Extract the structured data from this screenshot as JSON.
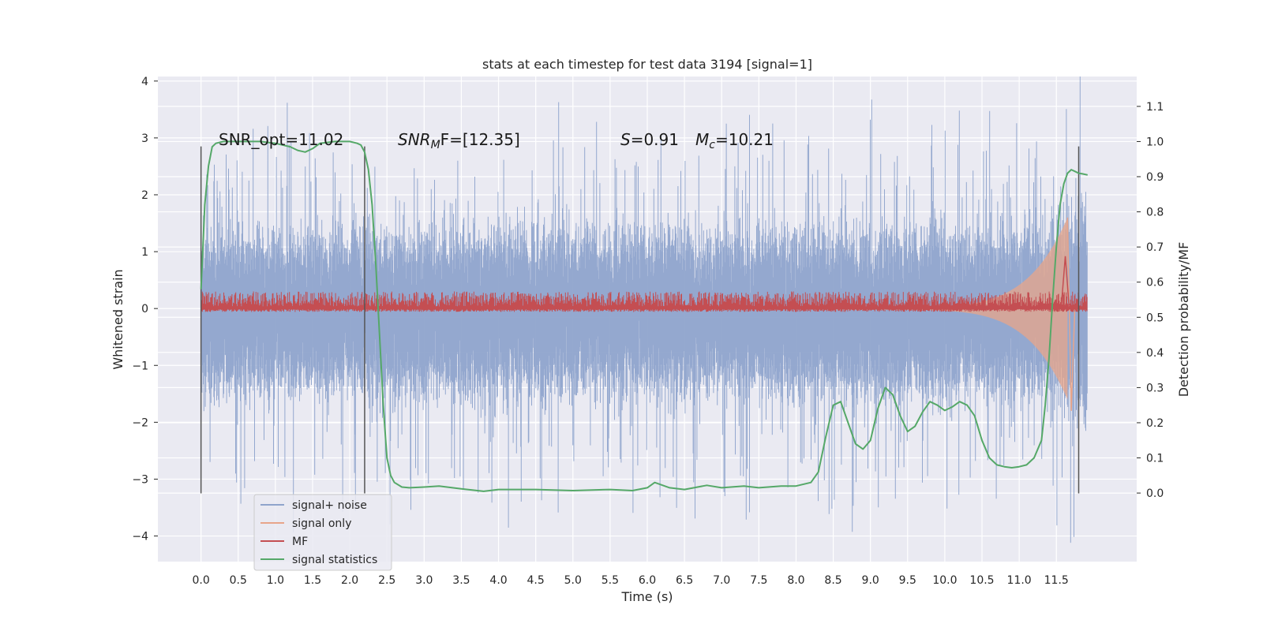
{
  "chart_data": {
    "type": "line",
    "title": "stats at each timestep for test data 3194 [signal=1]",
    "xlabel": "Time (s)",
    "ylabel_left": "Whitened strain",
    "ylabel_right": "Detection probability/MF",
    "xlim": [
      -0.58,
      12.58
    ],
    "ylim_left": [
      -4.45,
      4.08
    ],
    "ylim_right": [
      -0.195,
      1.185
    ],
    "x_ticks": [
      "0.0",
      "0.5",
      "1.0",
      "1.5",
      "2.0",
      "2.5",
      "3.0",
      "3.5",
      "4.0",
      "4.5",
      "5.0",
      "5.5",
      "6.0",
      "6.5",
      "7.0",
      "7.5",
      "8.0",
      "8.5",
      "9.0",
      "9.5",
      "10.0",
      "10.5",
      "11.0",
      "11.5"
    ],
    "y_ticks_left": [
      "4",
      "3",
      "2",
      "1",
      "0",
      "−1",
      "−2",
      "−3",
      "−4"
    ],
    "y_ticks_right": [
      "1.1",
      "1.0",
      "0.9",
      "0.8",
      "0.7",
      "0.6",
      "0.5",
      "0.4",
      "0.3",
      "0.2",
      "0.1",
      "0.0"
    ],
    "grid": true,
    "legend_position": "lower-left",
    "annotations": {
      "snr_opt": "SNR_opt=11.02",
      "snr_mf_base": "SNR",
      "snr_mf_sub": "M",
      "snr_mf_rest": "F=[12.35]",
      "s_base": "S",
      "s_rest": "=0.91",
      "mc_base": "M",
      "mc_sub": "c",
      "mc_rest": "=10.21"
    },
    "vertical_lines": [
      {
        "x": 0.0,
        "y_range": [
          -3.25,
          2.85
        ]
      },
      {
        "x": 2.2,
        "y_range": [
          -3.25,
          2.85
        ]
      },
      {
        "x": 11.8,
        "y_range": [
          -3.25,
          2.85
        ]
      }
    ],
    "series": [
      {
        "name": "signal+ noise",
        "color": "#8fa4cc",
        "envelope": {
          "x_start": 0.0,
          "x_end": 11.92,
          "typical_range": [
            -1.7,
            1.6
          ],
          "peak_range": [
            -4.1,
            3.7
          ]
        }
      },
      {
        "name": "signal only",
        "color": "#e8a58a",
        "chirp": {
          "x_start": 8.5,
          "x_end": 11.65,
          "amplitude_start": 0.02,
          "amplitude_peak": 1.6,
          "peak_x": 11.65
        }
      },
      {
        "name": "MF",
        "color": "#c44e52",
        "band": {
          "x_start": 0.0,
          "x_end": 11.92,
          "range": [
            -0.05,
            0.3
          ],
          "peak_x": 11.62,
          "peak_value": 0.92
        }
      },
      {
        "name": "signal statistics",
        "color": "#55a868",
        "x": [
          0.0,
          0.05,
          0.1,
          0.15,
          0.2,
          0.3,
          0.5,
          0.8,
          1.0,
          1.2,
          1.3,
          1.4,
          1.5,
          1.6,
          1.8,
          2.0,
          2.1,
          2.15,
          2.2,
          2.25,
          2.3,
          2.35,
          2.4,
          2.45,
          2.5,
          2.55,
          2.6,
          2.7,
          2.8,
          3.0,
          3.2,
          3.5,
          3.8,
          4.0,
          4.5,
          5.0,
          5.5,
          5.8,
          6.0,
          6.1,
          6.3,
          6.5,
          6.8,
          7.0,
          7.3,
          7.5,
          7.8,
          8.0,
          8.2,
          8.3,
          8.4,
          8.5,
          8.6,
          8.7,
          8.8,
          8.9,
          9.0,
          9.1,
          9.2,
          9.3,
          9.4,
          9.5,
          9.6,
          9.7,
          9.8,
          9.9,
          10.0,
          10.1,
          10.2,
          10.3,
          10.4,
          10.5,
          10.6,
          10.7,
          10.8,
          10.9,
          11.0,
          11.1,
          11.2,
          11.3,
          11.35,
          11.4,
          11.45,
          11.5,
          11.55,
          11.6,
          11.65,
          11.7,
          11.75,
          11.8,
          11.85,
          11.92
        ],
        "values": [
          0.58,
          0.82,
          0.93,
          0.985,
          0.995,
          1.0,
          1.0,
          1.0,
          0.995,
          0.985,
          0.975,
          0.97,
          0.98,
          0.995,
          1.0,
          1.0,
          0.995,
          0.99,
          0.97,
          0.92,
          0.82,
          0.65,
          0.45,
          0.25,
          0.1,
          0.05,
          0.03,
          0.017,
          0.015,
          0.017,
          0.02,
          0.012,
          0.005,
          0.01,
          0.01,
          0.007,
          0.01,
          0.007,
          0.015,
          0.03,
          0.015,
          0.01,
          0.022,
          0.015,
          0.02,
          0.015,
          0.02,
          0.02,
          0.03,
          0.06,
          0.16,
          0.25,
          0.26,
          0.2,
          0.14,
          0.125,
          0.15,
          0.24,
          0.3,
          0.28,
          0.22,
          0.175,
          0.19,
          0.23,
          0.26,
          0.25,
          0.235,
          0.245,
          0.26,
          0.25,
          0.22,
          0.15,
          0.1,
          0.08,
          0.075,
          0.072,
          0.075,
          0.08,
          0.1,
          0.15,
          0.25,
          0.38,
          0.55,
          0.7,
          0.82,
          0.88,
          0.91,
          0.92,
          0.915,
          0.91,
          0.908,
          0.905
        ]
      }
    ]
  }
}
